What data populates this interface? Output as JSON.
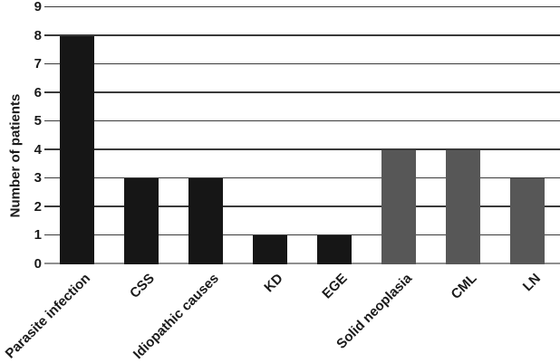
{
  "chart_data": {
    "type": "bar",
    "categories": [
      "Parasite infection",
      "CSS",
      "Idiopathic causes",
      "KD",
      "EGE",
      "Solid neoplasia",
      "CML",
      "LN"
    ],
    "values": [
      8,
      3,
      3,
      1,
      1,
      4,
      4,
      3
    ],
    "bar_colors": [
      "#161616",
      "#161616",
      "#161616",
      "#161616",
      "#161616",
      "#575757",
      "#575757",
      "#575757"
    ],
    "title": "",
    "xlabel": "",
    "ylabel": "Number of patients",
    "ylim": [
      0,
      9
    ],
    "yticks": [
      0,
      1,
      2,
      3,
      4,
      5,
      6,
      7,
      8,
      9
    ],
    "grid": true,
    "legend": false,
    "colors": {
      "gridline": "#3a3a3a",
      "baseline": "#8f8f8f",
      "text": "#1a1a1a",
      "background": "#ffffff"
    }
  }
}
